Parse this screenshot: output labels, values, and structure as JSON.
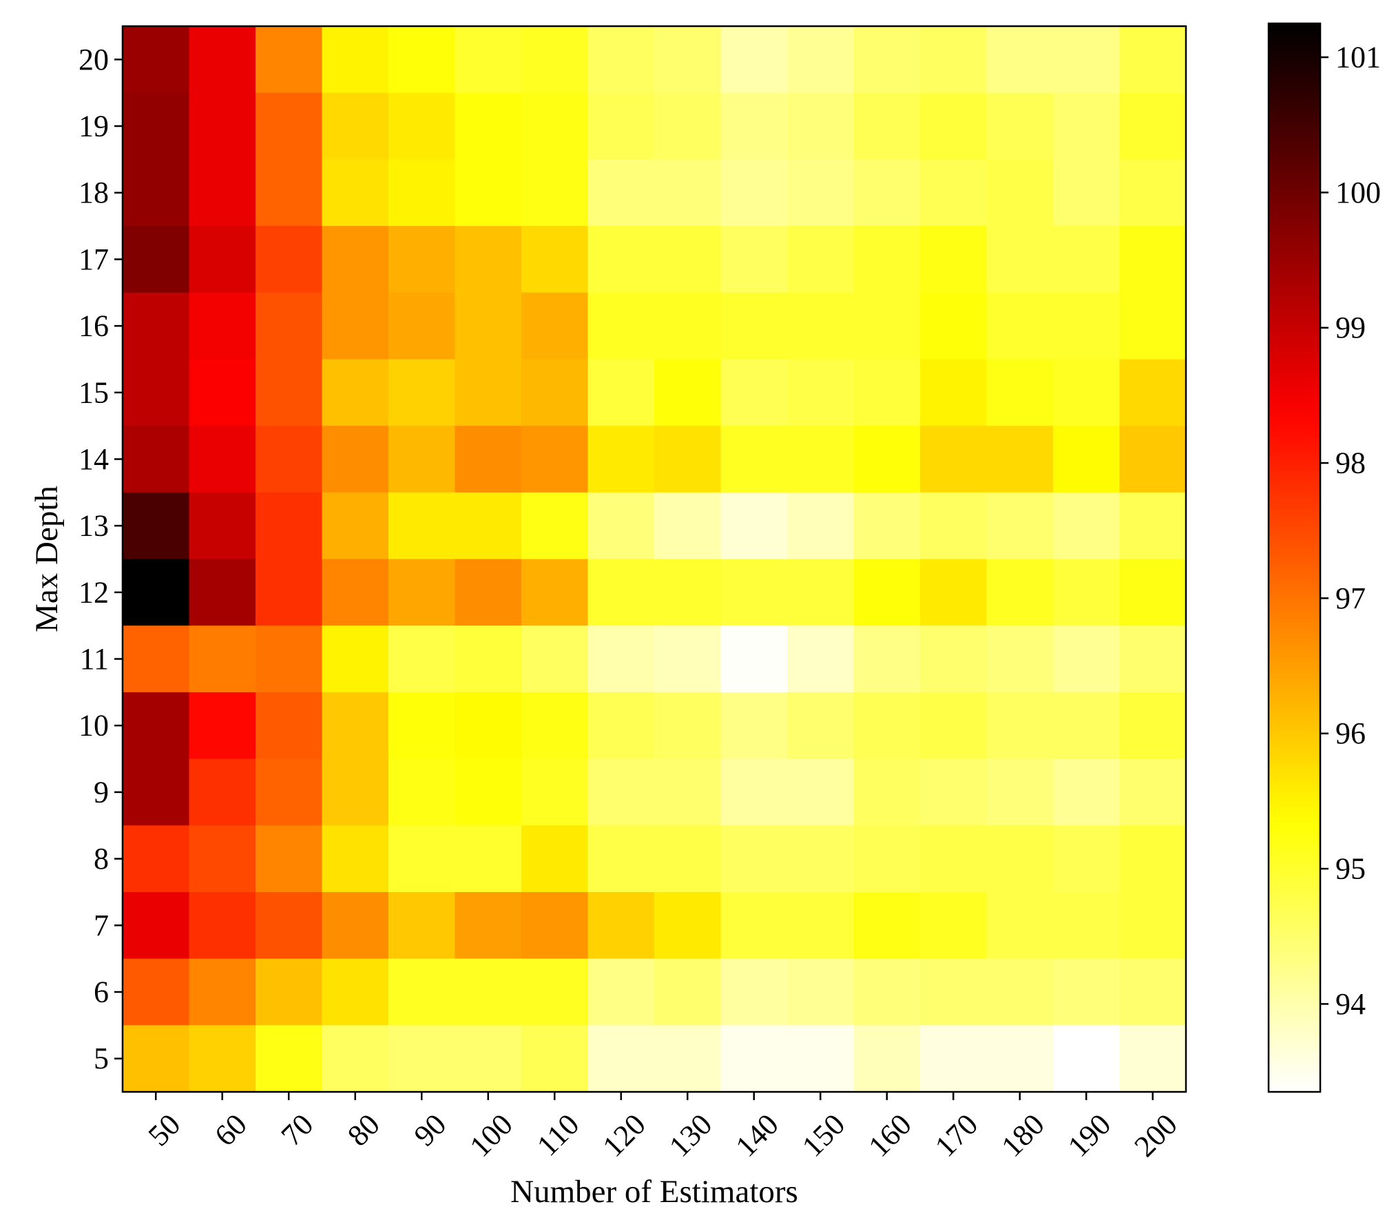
{
  "chart_data": {
    "type": "heatmap",
    "title": "",
    "xlabel": "Number of Estimators",
    "ylabel": "Max Depth",
    "x_categories": [
      "50",
      "60",
      "70",
      "80",
      "90",
      "100",
      "110",
      "120",
      "130",
      "140",
      "150",
      "160",
      "170",
      "180",
      "190",
      "200"
    ],
    "y_categories": [
      "20",
      "19",
      "18",
      "17",
      "16",
      "15",
      "14",
      "13",
      "12",
      "11",
      "10",
      "9",
      "8",
      "7",
      "6",
      "5"
    ],
    "values": [
      [
        99.5,
        98.6,
        96.8,
        95.5,
        95.3,
        95.0,
        95.1,
        94.6,
        94.5,
        94.0,
        94.2,
        94.5,
        94.6,
        94.3,
        94.3,
        94.8
      ],
      [
        99.6,
        98.6,
        97.2,
        95.8,
        95.6,
        95.3,
        95.2,
        94.7,
        94.6,
        94.3,
        94.4,
        94.7,
        94.9,
        94.7,
        94.5,
        95.0
      ],
      [
        99.6,
        98.6,
        97.2,
        95.7,
        95.5,
        95.3,
        95.2,
        94.4,
        94.4,
        94.2,
        94.3,
        94.5,
        94.7,
        94.8,
        94.5,
        94.8
      ],
      [
        99.8,
        98.8,
        97.6,
        96.6,
        96.3,
        96.1,
        95.8,
        94.9,
        94.9,
        94.6,
        94.8,
        95.0,
        95.2,
        94.8,
        94.8,
        95.2
      ],
      [
        99.1,
        98.5,
        97.4,
        96.6,
        96.4,
        96.1,
        96.3,
        95.1,
        95.1,
        95.0,
        95.0,
        95.0,
        95.3,
        95.0,
        95.0,
        95.2
      ],
      [
        99.1,
        98.4,
        97.4,
        96.1,
        95.9,
        96.1,
        96.2,
        94.9,
        95.3,
        94.7,
        94.8,
        94.9,
        95.5,
        95.2,
        95.1,
        95.8
      ],
      [
        99.3,
        98.6,
        97.6,
        96.7,
        96.2,
        96.7,
        96.6,
        95.6,
        95.7,
        95.1,
        95.1,
        95.3,
        95.8,
        95.8,
        95.4,
        96.0
      ],
      [
        100.4,
        99.0,
        97.8,
        96.3,
        95.6,
        95.6,
        95.2,
        94.4,
        94.0,
        93.7,
        93.9,
        94.4,
        94.6,
        94.5,
        94.3,
        94.7
      ],
      [
        101.3,
        99.4,
        97.8,
        96.8,
        96.4,
        96.7,
        96.3,
        95.0,
        95.0,
        94.9,
        94.9,
        95.3,
        95.6,
        95.1,
        94.9,
        95.2
      ],
      [
        97.2,
        96.9,
        97.0,
        95.5,
        94.8,
        94.9,
        94.6,
        94.0,
        93.9,
        93.4,
        93.8,
        94.3,
        94.5,
        94.4,
        94.2,
        94.5
      ],
      [
        99.4,
        98.3,
        97.3,
        96.0,
        95.3,
        95.4,
        95.2,
        94.7,
        94.6,
        94.3,
        94.5,
        94.7,
        94.8,
        94.6,
        94.6,
        94.9
      ],
      [
        99.4,
        97.8,
        97.2,
        96.0,
        95.2,
        95.3,
        95.1,
        94.5,
        94.5,
        94.1,
        94.1,
        94.6,
        94.5,
        94.4,
        94.2,
        94.5
      ],
      [
        97.8,
        97.5,
        96.8,
        95.7,
        95.0,
        95.0,
        95.6,
        94.8,
        94.8,
        94.6,
        94.6,
        94.7,
        94.8,
        94.8,
        94.7,
        94.9
      ],
      [
        98.6,
        97.8,
        97.4,
        96.7,
        96.0,
        96.5,
        96.6,
        95.9,
        95.6,
        94.9,
        94.9,
        95.2,
        95.1,
        94.8,
        94.8,
        94.9
      ],
      [
        97.3,
        96.8,
        96.1,
        95.7,
        95.1,
        95.1,
        95.1,
        94.3,
        94.5,
        94.1,
        94.2,
        94.4,
        94.5,
        94.5,
        94.4,
        94.5
      ],
      [
        96.1,
        95.9,
        95.2,
        94.6,
        94.5,
        94.5,
        94.7,
        93.8,
        93.8,
        93.5,
        93.5,
        93.9,
        93.6,
        93.6,
        93.3,
        93.7
      ]
    ],
    "colorbar": {
      "min": 93.35,
      "max": 101.25,
      "ticks": [
        94,
        95,
        96,
        97,
        98,
        99,
        100,
        101
      ],
      "colormap": "hot_r"
    },
    "grid": false
  }
}
